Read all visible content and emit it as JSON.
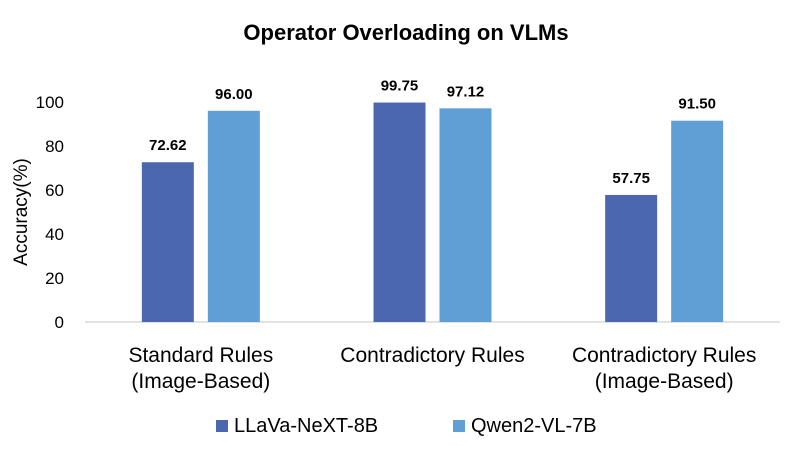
{
  "chart_data": {
    "type": "bar",
    "title": "Operator Overloading on VLMs",
    "ylabel": "Accuracy(%)",
    "xlabel": "",
    "ylim": [
      0,
      100
    ],
    "yticks": [
      0,
      20,
      40,
      60,
      80,
      100
    ],
    "categories": [
      [
        "Standard Rules",
        "(Image-Based)"
      ],
      [
        "Contradictory Rules"
      ],
      [
        "Contradictory Rules",
        "(Image-Based)"
      ]
    ],
    "series": [
      {
        "name": "LLaVa-NeXT-8B",
        "color": "#4a67b0",
        "values": [
          72.62,
          99.75,
          57.75
        ],
        "labels": [
          "72.62",
          "99.75",
          "57.75"
        ]
      },
      {
        "name": "Qwen2-VL-7B",
        "color": "#5f9fd5",
        "values": [
          96.0,
          97.12,
          91.5
        ],
        "labels": [
          "96.00",
          "97.12",
          "91.50"
        ]
      }
    ],
    "grid": false,
    "legend_position": "bottom"
  }
}
